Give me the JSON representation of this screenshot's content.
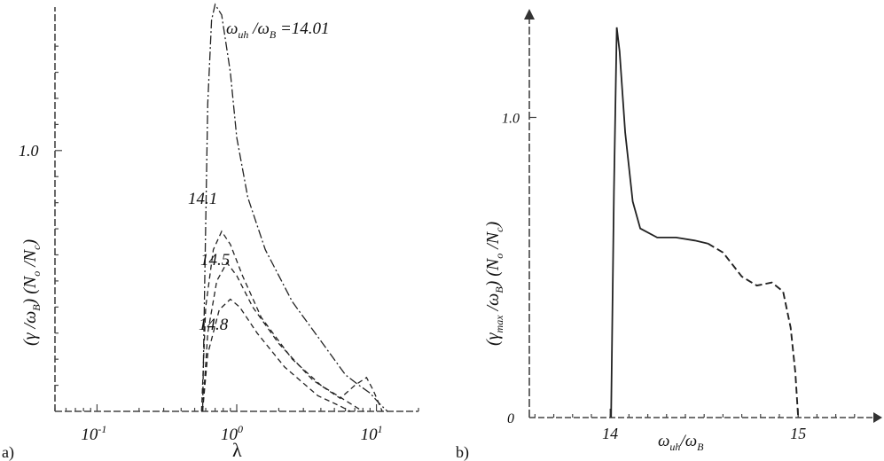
{
  "chart_data": [
    {
      "type": "line",
      "panel_label": "a)",
      "xlabel": "λ",
      "ylabel": "(γ /ω_B) (N_o /N_c)",
      "x_scale": "log",
      "xlim": [
        0.05,
        20
      ],
      "ylim": [
        0,
        1.55
      ],
      "x_ticks": [
        {
          "value": 0.1,
          "base": "10",
          "exp": "-1"
        },
        {
          "value": 1,
          "base": "10",
          "exp": "0"
        },
        {
          "value": 10,
          "base": "10",
          "exp": "1"
        }
      ],
      "y_ticks": [
        {
          "value": 1.0,
          "label": "1.0"
        }
      ],
      "series": [
        {
          "name": "14.01",
          "label": "ω_uh /ω_B =14.01",
          "style": "dashdot",
          "points": [
            [
              0.57,
              0
            ],
            [
              0.59,
              0.5
            ],
            [
              0.62,
              1.18
            ],
            [
              0.66,
              1.5
            ],
            [
              0.7,
              1.56
            ],
            [
              0.78,
              1.52
            ],
            [
              0.9,
              1.3
            ],
            [
              1.0,
              1.05
            ],
            [
              1.2,
              0.82
            ],
            [
              1.6,
              0.62
            ],
            [
              2.5,
              0.42
            ],
            [
              4.0,
              0.27
            ],
            [
              6.0,
              0.14
            ],
            [
              7.5,
              0.1
            ],
            [
              9.0,
              0.07
            ],
            [
              10.5,
              0.03
            ],
            [
              12.0,
              0.0
            ]
          ]
        },
        {
          "name": "14.1",
          "label": "14.1",
          "style": "dashed",
          "points": [
            [
              0.56,
              0
            ],
            [
              0.6,
              0.4
            ],
            [
              0.68,
              0.62
            ],
            [
              0.78,
              0.69
            ],
            [
              0.9,
              0.64
            ],
            [
              1.1,
              0.52
            ],
            [
              1.5,
              0.36
            ],
            [
              2.5,
              0.2
            ],
            [
              4.0,
              0.1
            ],
            [
              6.5,
              0.03
            ],
            [
              8.0,
              0.0
            ]
          ]
        },
        {
          "name": "14.5",
          "label": "14.5",
          "style": "dashed",
          "points": [
            [
              0.57,
              0
            ],
            [
              0.62,
              0.3
            ],
            [
              0.72,
              0.5
            ],
            [
              0.85,
              0.57
            ],
            [
              1.0,
              0.52
            ],
            [
              1.3,
              0.4
            ],
            [
              2.0,
              0.26
            ],
            [
              3.5,
              0.12
            ],
            [
              5.5,
              0.05
            ],
            [
              7.0,
              0.1
            ],
            [
              8.5,
              0.13
            ],
            [
              9.5,
              0.08
            ],
            [
              11.0,
              0.0
            ]
          ]
        },
        {
          "name": "14.8",
          "label": "14.8",
          "style": "dashed",
          "points": [
            [
              0.57,
              0
            ],
            [
              0.62,
              0.22
            ],
            [
              0.75,
              0.39
            ],
            [
              0.9,
              0.43
            ],
            [
              1.05,
              0.4
            ],
            [
              1.4,
              0.3
            ],
            [
              2.2,
              0.17
            ],
            [
              3.8,
              0.06
            ],
            [
              5.5,
              0.02
            ],
            [
              6.5,
              0.0
            ]
          ]
        }
      ]
    },
    {
      "type": "line",
      "panel_label": "b)",
      "xlabel": "ω_uh/ω_B",
      "ylabel": "(γ_max /ω_B) (N_o /N_c)",
      "xlim": [
        13.57,
        15.4
      ],
      "ylim": [
        0,
        1.35
      ],
      "x_ticks": [
        {
          "value": 14,
          "label": "14"
        },
        {
          "value": 15,
          "label": "15"
        }
      ],
      "y_ticks": [
        {
          "value": 0,
          "label": "0"
        },
        {
          "value": 1.0,
          "label": "1.0"
        }
      ],
      "series": [
        {
          "name": "solid",
          "style": "solid",
          "points": [
            [
              14.005,
              0
            ],
            [
              14.02,
              0.75
            ],
            [
              14.035,
              1.3
            ],
            [
              14.05,
              1.22
            ],
            [
              14.08,
              0.95
            ],
            [
              14.12,
              0.72
            ],
            [
              14.16,
              0.63
            ],
            [
              14.25,
              0.6
            ],
            [
              14.35,
              0.6
            ],
            [
              14.45,
              0.59
            ],
            [
              14.52,
              0.58
            ]
          ]
        },
        {
          "name": "dashed",
          "style": "dashed",
          "points": [
            [
              14.52,
              0.58
            ],
            [
              14.6,
              0.55
            ],
            [
              14.7,
              0.47
            ],
            [
              14.78,
              0.44
            ],
            [
              14.86,
              0.45
            ],
            [
              14.92,
              0.42
            ],
            [
              14.96,
              0.3
            ],
            [
              14.985,
              0.15
            ],
            [
              15.0,
              0.0
            ]
          ]
        }
      ]
    }
  ]
}
